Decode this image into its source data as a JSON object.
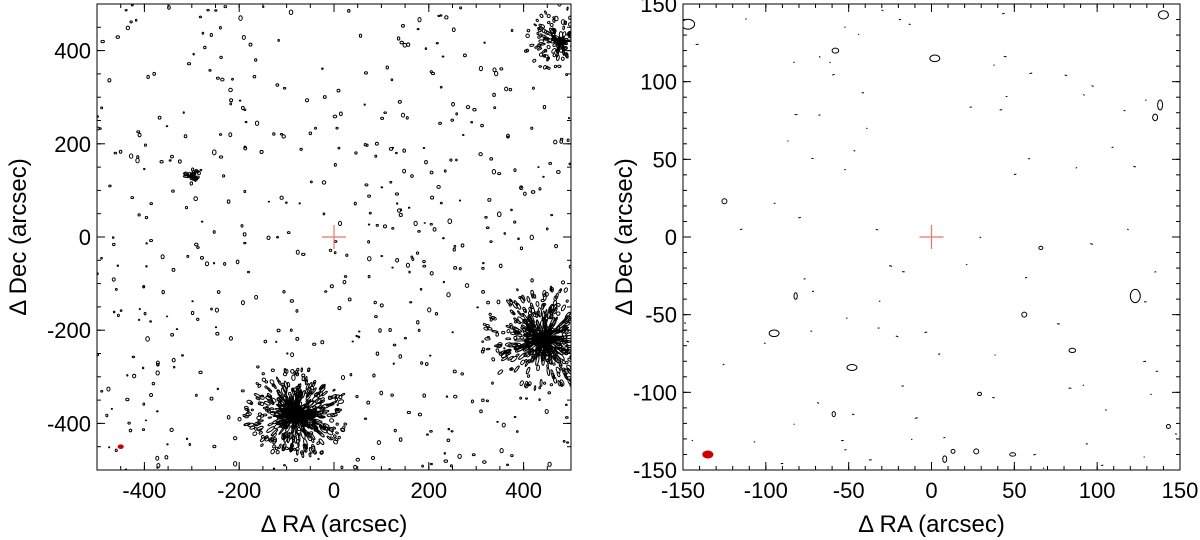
{
  "chart_data": [
    {
      "type": "contour",
      "xlabel": "Δ RA (arcsec)",
      "ylabel": "Δ Dec (arcsec)",
      "xlim": [
        -500,
        500
      ],
      "ylim": [
        -500,
        500
      ],
      "xticks": [
        -400,
        -200,
        0,
        200,
        400
      ],
      "yticks": [
        -400,
        -200,
        0,
        200,
        400
      ],
      "xtick_labels": [
        "-400",
        "-200",
        "0",
        "200",
        "400"
      ],
      "ytick_labels": [
        "-400",
        "-200",
        "0",
        "200",
        "400"
      ],
      "x_minor_step": 50,
      "y_minor_step": 50,
      "grid": false,
      "marker": {
        "shape": "cross",
        "x": 0,
        "y": 0,
        "color": "#e8766a"
      },
      "beam": {
        "x": -450,
        "y": -450,
        "color": "#cc0000",
        "size": "small"
      },
      "clusters": [
        {
          "x": -80,
          "y": -380,
          "radius": 110,
          "strength": "strong"
        },
        {
          "x": 440,
          "y": -220,
          "radius": 130,
          "strength": "strong"
        },
        {
          "x": -300,
          "y": 130,
          "radius": 20,
          "strength": "weak"
        },
        {
          "x": 480,
          "y": 420,
          "radius": 80,
          "strength": "medium"
        }
      ]
    },
    {
      "type": "contour",
      "xlabel": "Δ RA (arcsec)",
      "ylabel": "Δ Dec (arcsec)",
      "xlim": [
        -150,
        150
      ],
      "ylim": [
        -150,
        150
      ],
      "xticks": [
        -150,
        -100,
        -50,
        0,
        50,
        100,
        150
      ],
      "yticks": [
        -150,
        -100,
        -50,
        0,
        50,
        100,
        150
      ],
      "xtick_labels": [
        "-150",
        "-100",
        "-50",
        "0",
        "50",
        "100",
        "150"
      ],
      "ytick_labels": [
        "-150",
        "-100",
        "-50",
        "0",
        "50",
        "100",
        "150"
      ],
      "x_minor_step": 10,
      "y_minor_step": 10,
      "grid": false,
      "marker": {
        "shape": "cross",
        "x": 0,
        "y": 0,
        "color": "#e8766a"
      },
      "beam": {
        "x": -135,
        "y": -140,
        "color": "#cc0000",
        "size": "medium"
      },
      "contours": [
        {
          "x": -147,
          "y": 137,
          "rx": 4,
          "ry": 3
        },
        {
          "x": -58,
          "y": 120,
          "rx": 2,
          "ry": 1.5
        },
        {
          "x": 2,
          "y": 115,
          "rx": 3,
          "ry": 2
        },
        {
          "x": 140,
          "y": 143,
          "rx": 3,
          "ry": 2.5
        },
        {
          "x": 138,
          "y": 85,
          "rx": 1.5,
          "ry": 3
        },
        {
          "x": 135,
          "y": 77,
          "rx": 1.5,
          "ry": 2
        },
        {
          "x": -125,
          "y": 23,
          "rx": 1.5,
          "ry": 1.5
        },
        {
          "x": -95,
          "y": -62,
          "rx": 3,
          "ry": 2
        },
        {
          "x": -48,
          "y": -84,
          "rx": 3,
          "ry": 1.8
        },
        {
          "x": -82,
          "y": -38,
          "rx": 1,
          "ry": 2
        },
        {
          "x": 123,
          "y": -38,
          "rx": 3,
          "ry": 4
        },
        {
          "x": 85,
          "y": -73,
          "rx": 2,
          "ry": 1.3
        },
        {
          "x": 56,
          "y": -50,
          "rx": 1.5,
          "ry": 1.5
        },
        {
          "x": 66,
          "y": -7,
          "rx": 1.2,
          "ry": 1
        },
        {
          "x": 29,
          "y": -101,
          "rx": 1.2,
          "ry": 1
        },
        {
          "x": -59,
          "y": -114,
          "rx": 1,
          "ry": 1.5
        },
        {
          "x": 27,
          "y": -138,
          "rx": 1.5,
          "ry": 1.5
        },
        {
          "x": 143,
          "y": -122,
          "rx": 1.2,
          "ry": 1.2
        },
        {
          "x": 49,
          "y": -140,
          "rx": 1.8,
          "ry": 1
        },
        {
          "x": 8,
          "y": -143,
          "rx": 1.2,
          "ry": 2
        },
        {
          "x": 13,
          "y": -138,
          "rx": 1.2,
          "ry": 1.2
        }
      ]
    }
  ]
}
